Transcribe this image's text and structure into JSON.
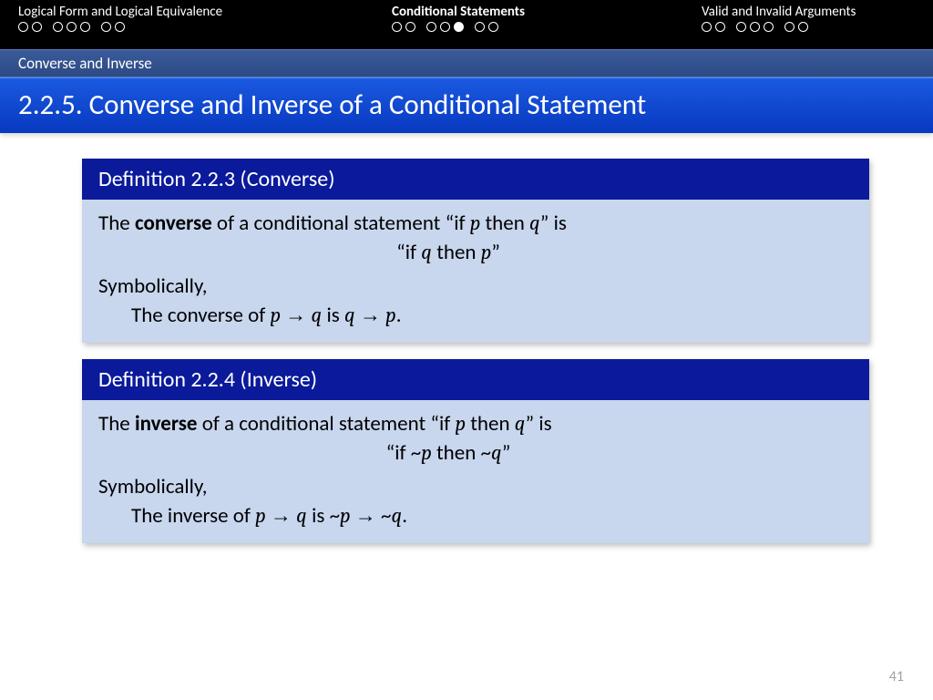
{
  "nav": {
    "sections": [
      {
        "label": "Logical Form and Logical Equivalence",
        "active": false,
        "groups": [
          2,
          3,
          2
        ],
        "filled_index": -1
      },
      {
        "label": "Conditional Statements",
        "active": true,
        "groups": [
          2,
          3,
          2
        ],
        "filled_index": 4
      },
      {
        "label": "Valid and Invalid Arguments",
        "active": false,
        "groups": [
          2,
          3,
          2
        ],
        "filled_index": -1
      }
    ]
  },
  "sub_header": "Converse and Inverse",
  "title": "2.2.5. Converse and Inverse of a Conditional Statement",
  "definitions": [
    {
      "header": "Definition 2.2.3 (Converse)",
      "term": "converse",
      "if_then_variant": "“if q then p”",
      "symbolic_prefix": "The converse of ",
      "left_expr": "p → q",
      "right_expr": "q → p"
    },
    {
      "header": "Definition 2.2.4 (Inverse)",
      "term": "inverse",
      "if_then_variant": "“if ~p then ~q”",
      "symbolic_prefix": "The inverse of ",
      "left_expr": "p → q",
      "right_expr": "~p → ~q"
    }
  ],
  "common": {
    "cond_prefix": "The ",
    "cond_mid": " of a conditional statement “if ",
    "cond_p": "p",
    "cond_then": " then ",
    "cond_q": "q",
    "cond_suffix": "” is",
    "symbolically": "Symbolically,",
    "is_word": " is "
  },
  "page_number": "41",
  "colors": {
    "nav_bg": "#000000",
    "sub_bg": "#2d4a84",
    "title_bg": "#0838c0",
    "def_header_bg": "#0a1a9a",
    "def_body_bg": "#c8d6ee"
  }
}
